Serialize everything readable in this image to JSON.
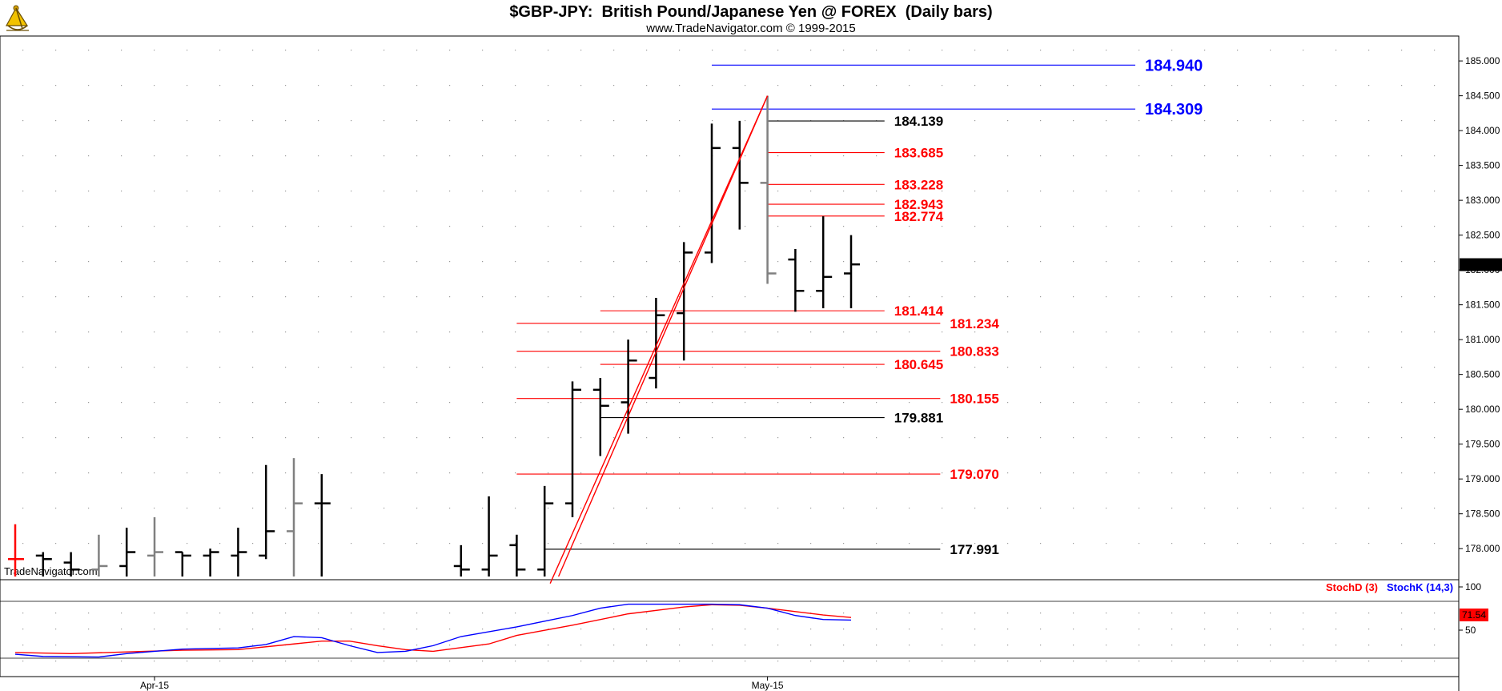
{
  "header": {
    "title": "$GBP-JPY:  British Pound/Japanese Yen @ FOREX  (Daily bars)",
    "subtitle": "www.TradeNavigator.com © 1999-2015"
  },
  "watermark": "TradeNavigator.com",
  "logo_icon": "sextant-logo-icon",
  "colors": {
    "bar_black": "#000000",
    "bar_gray": "#808080",
    "bar_red": "#ff0000",
    "fib_red": "#ff0000",
    "level_blue": "#0000ff",
    "stoch_d": "#ff0000",
    "stoch_k": "#0000ff"
  },
  "chart_data": [
    {
      "type": "ohlc",
      "title": "$GBP-JPY:  British Pound/Japanese Yen @ FOREX  (Daily bars)",
      "y_ticks": [
        "178.000",
        "178.500",
        "179.000",
        "179.500",
        "180.000",
        "180.500",
        "181.000",
        "181.500",
        "182.000",
        "182.500",
        "183.000",
        "183.500",
        "184.000",
        "184.500",
        "185.000"
      ],
      "ylim": [
        177.6,
        185.3
      ],
      "x_ticks": [
        {
          "label": "Apr-15",
          "slot": 5
        },
        {
          "label": "May-15",
          "slot": 27
        }
      ],
      "last_price": "182.076",
      "bars": [
        {
          "o": 177.85,
          "h": 178.35,
          "l": 177.6,
          "c": 177.85,
          "color": "red"
        },
        {
          "o": 177.9,
          "h": 177.95,
          "l": 177.6,
          "c": 177.85,
          "color": "black"
        },
        {
          "o": 177.8,
          "h": 177.95,
          "l": 177.6,
          "c": 177.7,
          "color": "black"
        },
        {
          "o": 177.7,
          "h": 178.2,
          "l": 177.6,
          "c": 177.75,
          "color": "gray"
        },
        {
          "o": 177.75,
          "h": 178.3,
          "l": 177.6,
          "c": 177.95,
          "color": "black"
        },
        {
          "o": 177.9,
          "h": 178.45,
          "l": 177.6,
          "c": 177.95,
          "color": "gray"
        },
        {
          "o": 177.95,
          "h": 177.95,
          "l": 177.6,
          "c": 177.9,
          "color": "black"
        },
        {
          "o": 177.9,
          "h": 178.0,
          "l": 177.6,
          "c": 177.95,
          "color": "black"
        },
        {
          "o": 177.9,
          "h": 178.3,
          "l": 177.6,
          "c": 177.95,
          "color": "black"
        },
        {
          "o": 177.9,
          "h": 179.2,
          "l": 177.85,
          "c": 178.25,
          "color": "black"
        },
        {
          "o": 178.25,
          "h": 179.3,
          "l": 177.6,
          "c": 178.65,
          "color": "gray"
        },
        {
          "o": 178.65,
          "h": 179.07,
          "l": 177.6,
          "c": 178.65,
          "color": "black"
        },
        null,
        null,
        null,
        null,
        {
          "o": 177.75,
          "h": 178.05,
          "l": 177.6,
          "c": 177.7,
          "color": "black"
        },
        {
          "o": 177.7,
          "h": 178.75,
          "l": 177.6,
          "c": 177.9,
          "color": "black"
        },
        {
          "o": 178.05,
          "h": 178.2,
          "l": 177.6,
          "c": 177.7,
          "color": "black"
        },
        {
          "o": 177.7,
          "h": 178.9,
          "l": 177.6,
          "c": 178.65,
          "color": "black"
        },
        {
          "o": 178.65,
          "h": 180.4,
          "l": 178.45,
          "c": 180.28,
          "color": "black"
        },
        {
          "o": 180.28,
          "h": 180.45,
          "l": 179.33,
          "c": 180.05,
          "color": "black"
        },
        {
          "o": 180.1,
          "h": 181.0,
          "l": 179.65,
          "c": 180.7,
          "color": "black"
        },
        {
          "o": 180.45,
          "h": 181.6,
          "l": 180.3,
          "c": 181.35,
          "color": "black"
        },
        {
          "o": 181.38,
          "h": 182.4,
          "l": 180.7,
          "c": 182.25,
          "color": "black"
        },
        {
          "o": 182.25,
          "h": 184.1,
          "l": 182.1,
          "c": 183.75,
          "color": "black"
        },
        {
          "o": 183.75,
          "h": 184.14,
          "l": 182.58,
          "c": 183.25,
          "color": "black"
        },
        {
          "o": 183.25,
          "h": 184.5,
          "l": 181.8,
          "c": 181.95,
          "color": "gray"
        },
        {
          "o": 182.15,
          "h": 182.3,
          "l": 181.4,
          "c": 181.7,
          "color": "black"
        },
        {
          "o": 181.7,
          "h": 182.77,
          "l": 181.45,
          "c": 181.9,
          "color": "black"
        },
        {
          "o": 181.95,
          "h": 182.5,
          "l": 181.45,
          "c": 182.08,
          "color": "black"
        }
      ],
      "trendlines": [
        {
          "x1": 19.2,
          "y1": 177.5,
          "x2": 27.0,
          "y2": 184.5
        },
        {
          "x1": 19.5,
          "y1": 177.6,
          "x2": 27.0,
          "y2": 184.5
        }
      ],
      "levels": [
        {
          "value": "184.940",
          "color": "blue",
          "big": true,
          "from_slot": 25,
          "to_slot": 40.2
        },
        {
          "value": "184.309",
          "color": "blue",
          "big": true,
          "from_slot": 25,
          "to_slot": 40.2
        },
        {
          "value": "184.139",
          "color": "black",
          "big": false,
          "from_slot": 27,
          "to_slot": 31.2
        },
        {
          "value": "183.685",
          "color": "red",
          "big": false,
          "from_slot": 27,
          "to_slot": 31.2
        },
        {
          "value": "183.228",
          "color": "red",
          "big": false,
          "from_slot": 27,
          "to_slot": 31.2
        },
        {
          "value": "182.943",
          "color": "red",
          "big": false,
          "from_slot": 27,
          "to_slot": 31.2
        },
        {
          "value": "182.774",
          "color": "red",
          "big": false,
          "from_slot": 27,
          "to_slot": 31.2
        },
        {
          "value": "181.414",
          "color": "red",
          "big": false,
          "from_slot": 21,
          "to_slot": 31.2
        },
        {
          "value": "181.234",
          "color": "red",
          "big": false,
          "from_slot": 18,
          "to_slot": 33.2
        },
        {
          "value": "180.833",
          "color": "red",
          "big": false,
          "from_slot": 18,
          "to_slot": 33.2
        },
        {
          "value": "180.645",
          "color": "red",
          "big": false,
          "from_slot": 21,
          "to_slot": 31.2
        },
        {
          "value": "180.155",
          "color": "red",
          "big": false,
          "from_slot": 18,
          "to_slot": 33.2
        },
        {
          "value": "179.881",
          "color": "black",
          "big": false,
          "from_slot": 21,
          "to_slot": 31.2
        },
        {
          "value": "179.070",
          "color": "red",
          "big": false,
          "from_slot": 18,
          "to_slot": 33.2
        },
        {
          "value": "177.991",
          "color": "black",
          "big": false,
          "from_slot": 19,
          "to_slot": 33.2
        }
      ]
    },
    {
      "type": "line",
      "ylim": [
        0,
        100
      ],
      "y_ticks": [
        "100",
        "50"
      ],
      "legend": [
        {
          "name": "StochD (3)",
          "color": "red"
        },
        {
          "name": "StochK (14,3)",
          "color": "blue"
        }
      ],
      "last_value": "71.54",
      "series": [
        {
          "name": "StochD (3)",
          "color": "red",
          "points": [
            [
              0,
              10
            ],
            [
              2,
              8
            ],
            [
              4,
              11
            ],
            [
              6,
              14
            ],
            [
              8,
              15
            ],
            [
              10,
              25
            ],
            [
              11,
              30
            ],
            [
              12,
              30
            ],
            [
              13,
              22
            ],
            [
              14,
              15
            ],
            [
              15,
              12
            ],
            [
              17,
              25
            ],
            [
              18,
              40
            ],
            [
              20,
              58
            ],
            [
              22,
              78
            ],
            [
              24,
              90
            ],
            [
              25,
              94
            ],
            [
              26,
              93
            ],
            [
              27,
              88
            ],
            [
              28,
              82
            ],
            [
              29,
              76
            ],
            [
              30,
              71.54
            ]
          ]
        },
        {
          "name": "StochK (14,3)",
          "color": "blue",
          "points": [
            [
              0,
              7
            ],
            [
              1,
              3
            ],
            [
              3,
              2
            ],
            [
              4,
              8
            ],
            [
              5,
              12
            ],
            [
              6,
              16
            ],
            [
              8,
              18
            ],
            [
              9,
              24
            ],
            [
              10,
              38
            ],
            [
              11,
              36
            ],
            [
              12,
              22
            ],
            [
              13,
              10
            ],
            [
              14,
              12
            ],
            [
              15,
              22
            ],
            [
              16,
              38
            ],
            [
              18,
              55
            ],
            [
              19,
              65
            ],
            [
              20,
              75
            ],
            [
              21,
              88
            ],
            [
              22,
              95
            ],
            [
              24,
              95
            ],
            [
              25,
              95
            ],
            [
              26,
              94
            ],
            [
              27,
              88
            ],
            [
              28,
              75
            ],
            [
              29,
              68
            ],
            [
              30,
              67
            ]
          ]
        }
      ]
    }
  ]
}
